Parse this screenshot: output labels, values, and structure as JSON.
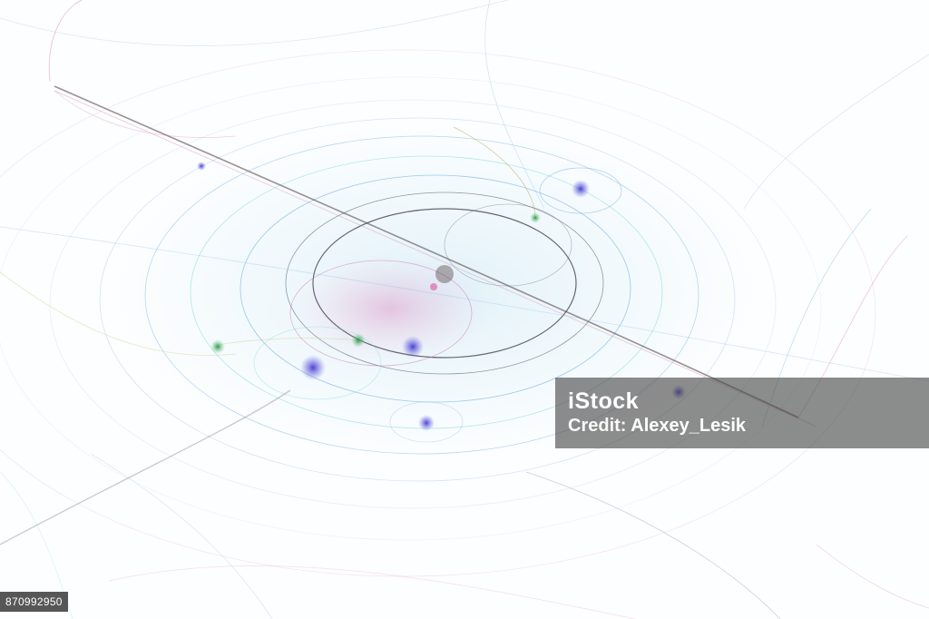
{
  "watermark": {
    "logo": "iStock",
    "credit_prefix": "Credit: ",
    "credit_name": "Alexey_Lesik"
  },
  "image_id": "870992950",
  "colors": {
    "background": "#ffffff",
    "watermark_bg": "#464646",
    "line_blue": "#5aa0d8",
    "line_cyan": "#6fd6d6",
    "line_pink": "#d27aa6",
    "line_dark": "#4a3a3a",
    "spot_violet": "#4b3fd0",
    "spot_green": "#2fa04a"
  }
}
